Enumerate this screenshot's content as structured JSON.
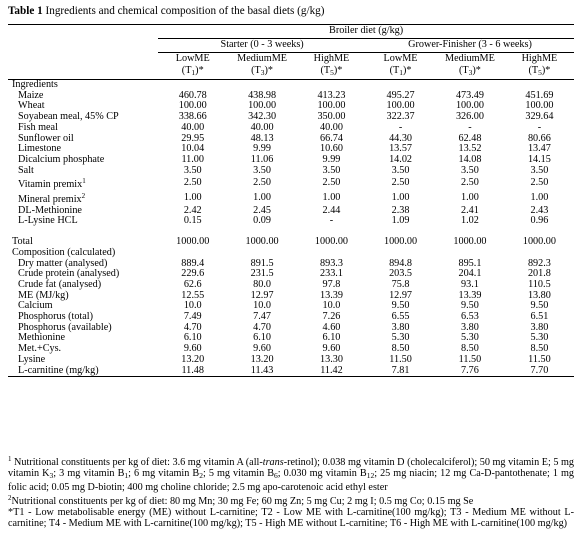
{
  "title": {
    "prefix": "Table 1",
    "text": "Ingredients and chemical composition of the basal diets (g/kg)"
  },
  "header": {
    "group": "Broiler diet (g/kg)",
    "phases": [
      "Starter (0 - 3 weeks)",
      "Grower-Finisher (3 - 6 weeks)"
    ],
    "columns": [
      {
        "name": "LowME",
        "t": "(T",
        "n": "1",
        "end": ")*"
      },
      {
        "name": "MediumME",
        "t": "(T",
        "n": "3",
        "end": ")*"
      },
      {
        "name": "HighME",
        "t": "(T",
        "n": "5",
        "end": ")*"
      },
      {
        "name": "LowME",
        "t": "(T",
        "n": "1",
        "end": ")*"
      },
      {
        "name": "MediumME",
        "t": "(T",
        "n": "3",
        "end": ")*"
      },
      {
        "name": "HighME",
        "t": "(T",
        "n": "5",
        "end": ")*"
      }
    ]
  },
  "sections": {
    "ingredients": "Ingredients",
    "composition": "Composition (calculated)"
  },
  "ingredients": [
    {
      "label": "Maize",
      "values": [
        "460.78",
        "438.98",
        "413.23",
        "495.27",
        "473.49",
        "451.69"
      ]
    },
    {
      "label": "Wheat",
      "values": [
        "100.00",
        "100.00",
        "100.00",
        "100.00",
        "100.00",
        "100.00"
      ]
    },
    {
      "label": "Soyabean meal, 45% CP",
      "values": [
        "338.66",
        "342.30",
        "350.00",
        "322.37",
        "326.00",
        "329.64"
      ]
    },
    {
      "label": "Fish meal",
      "values": [
        "40.00",
        "40.00",
        "40.00",
        "-",
        "-",
        "-"
      ]
    },
    {
      "label": "Sunflower oil",
      "values": [
        "29.95",
        "48.13",
        "66.74",
        "44.30",
        "62.48",
        "80.66"
      ]
    },
    {
      "label": "Limestone",
      "values": [
        "10.04",
        "9.99",
        "10.60",
        "13.57",
        "13.52",
        "13.47"
      ]
    },
    {
      "label": "Dicalcium phosphate",
      "values": [
        "11.00",
        "11.06",
        "9.99",
        "14.02",
        "14.08",
        "14.15"
      ]
    },
    {
      "label": "Salt",
      "values": [
        "3.50",
        "3.50",
        "3.50",
        "3.50",
        "3.50",
        "3.50"
      ]
    },
    {
      "label": "Vitamin premix",
      "sup": "1",
      "values": [
        "2.50",
        "2.50",
        "2.50",
        "2.50",
        "2.50",
        "2.50"
      ]
    },
    {
      "label": "Mineral premix",
      "sup": "2",
      "values": [
        "1.00",
        "1.00",
        "1.00",
        "1.00",
        "1.00",
        "1.00"
      ]
    },
    {
      "label": "DL-Methionine",
      "values": [
        "2.42",
        "2.45",
        "2.44",
        "2.38",
        "2.41",
        "2.43"
      ]
    },
    {
      "label": "L-Lysine HCL",
      "values": [
        "0.15",
        "0.09",
        "-",
        "1.09",
        "1.02",
        "0.96"
      ]
    }
  ],
  "total": {
    "label": "Total",
    "values": [
      "1000.00",
      "1000.00",
      "1000.00",
      "1000.00",
      "1000.00",
      "1000.00"
    ]
  },
  "composition": [
    {
      "label": "Dry matter (analysed)",
      "values": [
        "889.4",
        "891.5",
        "893.3",
        "894.8",
        "895.1",
        "892.3"
      ]
    },
    {
      "label": "Crude protein (analysed)",
      "values": [
        "229.6",
        "231.5",
        "233.1",
        "203.5",
        "204.1",
        "201.8"
      ]
    },
    {
      "label": "Crude fat (analysed)",
      "values": [
        "62.6",
        "80.0",
        "97.8",
        "75.8",
        "93.1",
        "110.5"
      ]
    },
    {
      "label": "ME (MJ/kg)",
      "values": [
        "12.55",
        "12.97",
        "13.39",
        "12.97",
        "13.39",
        "13.80"
      ]
    },
    {
      "label": "Calcium",
      "values": [
        "10.0",
        "10.0",
        "10.0",
        "9.50",
        "9.50",
        "9.50"
      ]
    },
    {
      "label": "Phosphorus (total)",
      "values": [
        "7.49",
        "7.47",
        "7.26",
        "6.55",
        "6.53",
        "6.51"
      ]
    },
    {
      "label": "Phosphorus (available)",
      "values": [
        "4.70",
        "4.70",
        "4.60",
        "3.80",
        "3.80",
        "3.80"
      ]
    },
    {
      "label": "Methionine",
      "values": [
        "6.10",
        "6.10",
        "6.10",
        "5.30",
        "5.30",
        "5.30"
      ]
    },
    {
      "label": "Met.+Cys.",
      "values": [
        "9.60",
        "9.60",
        "9.60",
        "8.50",
        "8.50",
        "8.50"
      ]
    },
    {
      "label": "Lysine",
      "values": [
        "13.20",
        "13.20",
        "13.30",
        "11.50",
        "11.50",
        "11.50"
      ]
    },
    {
      "label": "L-carnitine (mg/kg)",
      "values": [
        "11.48",
        "11.43",
        "11.42",
        "7.81",
        "7.76",
        "7.70"
      ]
    }
  ],
  "footnotes": {
    "n1": {
      "sup": "1",
      "a": " Nutritional constituents per kg of diet: 3.6 mg vitamin A (all-",
      "a_italic": "trans",
      "b": "-retinol); 0.038 mg vitamin D (cholecalciferol); 50 mg vitamin E; 5 mg vitamin K",
      "b_sub": "3",
      "c": "; 3 mg vitamin B",
      "c_sub": "1",
      "d": "; 6 mg vitamin B",
      "d_sub": "2",
      "e": "; 5 mg vitamin B",
      "e_sub": "6",
      "f": "; 0.030 mg vitamin B",
      "f_sub": "12",
      "g": "; 25 mg niacin; 12 mg Ca-D-pantothenate; 1 mg folic acid; 0.05 mg D-biotin; 400 mg choline chloride; 2.5 mg apo-carotenoic acid ethyl ester"
    },
    "n2": {
      "sup": "2",
      "text": "Nutritional constituents per kg of diet: 80 mg Mn; 30 mg Fe; 60 mg Zn; 5 mg Cu; 2 mg I; 0.5 mg Co; 0.15 mg Se"
    },
    "n3": "*T1 - Low metabolisable energy (ME) without L-carnitine; T2 - Low ME with L-carnitine(100 mg/kg); T3 - Medium ME without L-carnitine; T4 - Medium ME with L-carnitine(100 mg/kg); T5 - High ME without L-carnitine; T6 - High ME with L-carnitine(100 mg/kg)"
  }
}
